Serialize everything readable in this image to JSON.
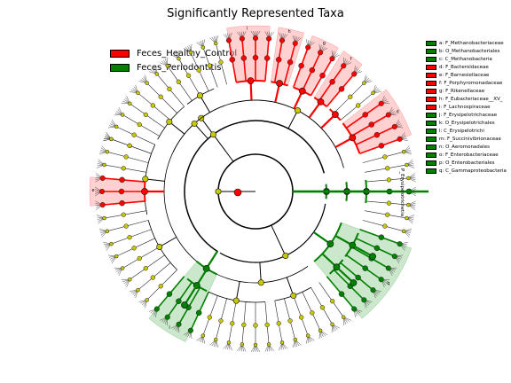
{
  "title": "Significantly Represented Taxa",
  "colors": {
    "healthy": "#ff0000",
    "periodontitis": "#008000",
    "neutral": "#c8c800",
    "healthy_shade": "#ff9a9a",
    "periodontitis_shade": "#8fcc8f"
  },
  "groups": [
    {
      "name": "Feces_Healthy_Control",
      "color": "#ff0000"
    },
    {
      "name": "Feces_Periodontitis",
      "color": "#008000"
    }
  ],
  "chart_data": {
    "type": "cladogram",
    "title": "Significantly Represented Taxa",
    "ring_label": "P_Erysipelotrichetia",
    "clades": [
      {
        "letter": "a",
        "name": "F_Methanobacteriaceae",
        "group": "Feces_Periodontitis"
      },
      {
        "letter": "b",
        "name": "O_Methanobacteriales",
        "group": "Feces_Periodontitis"
      },
      {
        "letter": "c",
        "name": "C_Methanobacteria",
        "group": "Feces_Periodontitis"
      },
      {
        "letter": "d",
        "name": "F_Bacteroidaceae",
        "group": "Feces_Healthy_Control"
      },
      {
        "letter": "e",
        "name": "F_Barnesiellaceae",
        "group": "Feces_Healthy_Control"
      },
      {
        "letter": "f",
        "name": "F_Porphyromonadaceae",
        "group": "Feces_Healthy_Control"
      },
      {
        "letter": "g",
        "name": "F_Rikenellaceae",
        "group": "Feces_Healthy_Control"
      },
      {
        "letter": "h",
        "name": "F_Eubacteriaceae__XV_",
        "group": "Feces_Healthy_Control"
      },
      {
        "letter": "i",
        "name": "F_Lachnospiraceae",
        "group": "Feces_Healthy_Control"
      },
      {
        "letter": "j",
        "name": "F_Erysipelotrichaceae",
        "group": "Feces_Periodontitis"
      },
      {
        "letter": "k",
        "name": "O_Erysipelotrichales",
        "group": "Feces_Periodontitis"
      },
      {
        "letter": "l",
        "name": "C_Erysipelotrichi",
        "group": "Feces_Periodontitis"
      },
      {
        "letter": "m",
        "name": "F_Succinivibrionaceae",
        "group": "Feces_Periodontitis"
      },
      {
        "letter": "n",
        "name": "O_Aeromonadales",
        "group": "Feces_Periodontitis"
      },
      {
        "letter": "o",
        "name": "F_Enterobacteriaceae",
        "group": "Feces_Periodontitis"
      },
      {
        "letter": "p",
        "name": "O_Enterobacteriales",
        "group": "Feces_Periodontitis"
      },
      {
        "letter": "q",
        "name": "C_Gammaproteobacteria",
        "group": "Feces_Periodontitis"
      }
    ]
  }
}
